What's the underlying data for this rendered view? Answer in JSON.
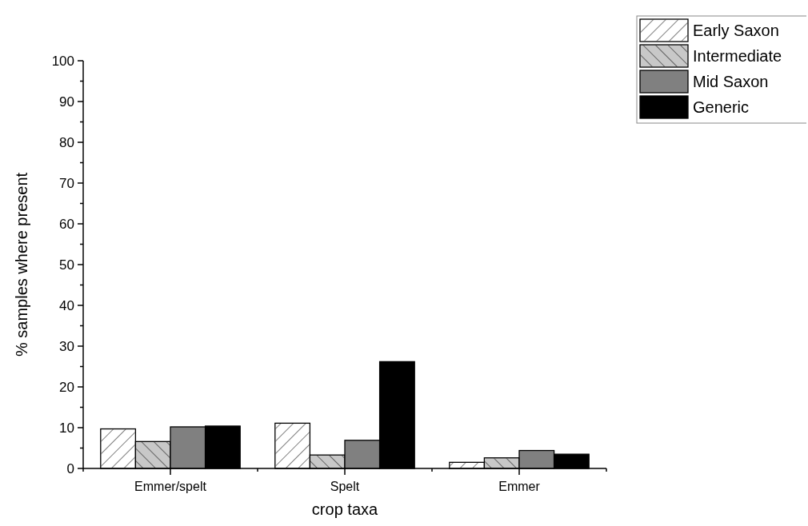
{
  "chart_data": {
    "type": "bar",
    "xlabel": "crop taxa",
    "ylabel": "% samples where present",
    "categories": [
      "Emmer/spelt",
      "Spelt",
      "Emmer"
    ],
    "series": [
      {
        "name": "Early Saxon",
        "color": "#ffffff",
        "values": [
          9.7,
          11.1,
          1.5
        ]
      },
      {
        "name": "Intermediate",
        "color": "#c8c8c8",
        "values": [
          6.6,
          3.3,
          2.6
        ]
      },
      {
        "name": "Mid Saxon",
        "color": "#808080",
        "values": [
          10.2,
          6.9,
          4.4
        ]
      },
      {
        "name": "Generic",
        "color": "#000000",
        "values": [
          10.4,
          26.2,
          3.5
        ]
      }
    ],
    "ylim": [
      0,
      100
    ],
    "yticks": [
      0,
      {
        "value": 5,
        "label": null
      },
      10,
      {
        "value": 15,
        "label": null
      },
      20,
      {
        "value": 25,
        "label": null
      },
      30,
      {
        "value": 35,
        "label": null
      },
      40,
      {
        "value": 45,
        "label": null
      },
      50,
      {
        "value": 55,
        "label": null
      },
      60,
      {
        "value": 65,
        "label": null
      },
      70,
      {
        "value": 75,
        "label": null
      },
      80,
      {
        "value": 85,
        "label": null
      },
      90,
      {
        "value": 95,
        "label": null
      },
      100
    ],
    "legend": "top right",
    "grid": false
  }
}
